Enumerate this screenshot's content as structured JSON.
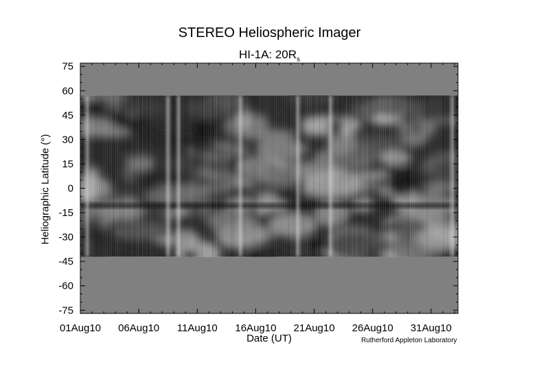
{
  "chart_data": {
    "type": "heatmap",
    "title": "STEREO Heliospheric Imager",
    "subtitle": "HI-1A: 20R",
    "subtitle_sub": "s",
    "xlabel": "Date (UT)",
    "ylabel": "Heliographic Latitude (°)",
    "x_tick_labels": [
      "01Aug10",
      "06Aug10",
      "11Aug10",
      "16Aug10",
      "21Aug10",
      "26Aug10",
      "31Aug10"
    ],
    "x_ticks_day": [
      1,
      6,
      11,
      16,
      21,
      26,
      31
    ],
    "xlim_day": [
      1,
      33.3
    ],
    "y_ticks": [
      75,
      60,
      45,
      30,
      15,
      0,
      -15,
      -30,
      -45,
      -60,
      -75
    ],
    "ylim": [
      -77,
      77
    ],
    "data_coverage_lat": [
      -42,
      57
    ],
    "colormap": "grayscale",
    "missing_data_color": "#808080",
    "bright_tracks_day": [
      1.6,
      8.5,
      9.4,
      14.7,
      19.6,
      22.4,
      32.8
    ],
    "grid": false,
    "legend": "none"
  },
  "credit": "Rutherford Appleton Laboratory"
}
